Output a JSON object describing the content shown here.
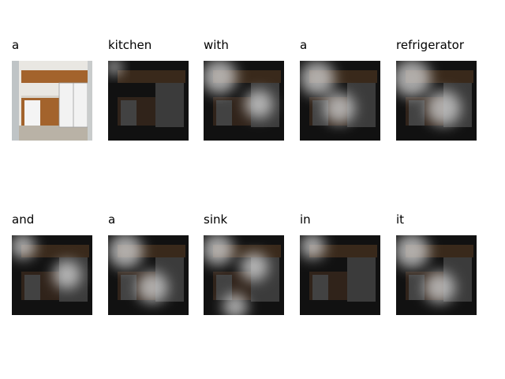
{
  "figure": {
    "words": [
      {
        "text": "a",
        "scene": "original"
      },
      {
        "text": "kitchen",
        "scene": "attention"
      },
      {
        "text": "with",
        "scene": "attention"
      },
      {
        "text": "a",
        "scene": "attention"
      },
      {
        "text": "refrigerator",
        "scene": "attention"
      },
      {
        "text": "and",
        "scene": "attention"
      },
      {
        "text": "a",
        "scene": "attention"
      },
      {
        "text": "sink",
        "scene": "attention"
      },
      {
        "text": "in",
        "scene": "attention"
      },
      {
        "text": "it",
        "scene": "attention"
      }
    ]
  },
  "colors": {
    "background": "#ffffff",
    "caption": "#000000",
    "cabinet": "#a3632c",
    "floor": "#b9b2a6",
    "wall": "#e9e7e2",
    "fridge": "#f2f2f2",
    "dark": "#111111"
  }
}
